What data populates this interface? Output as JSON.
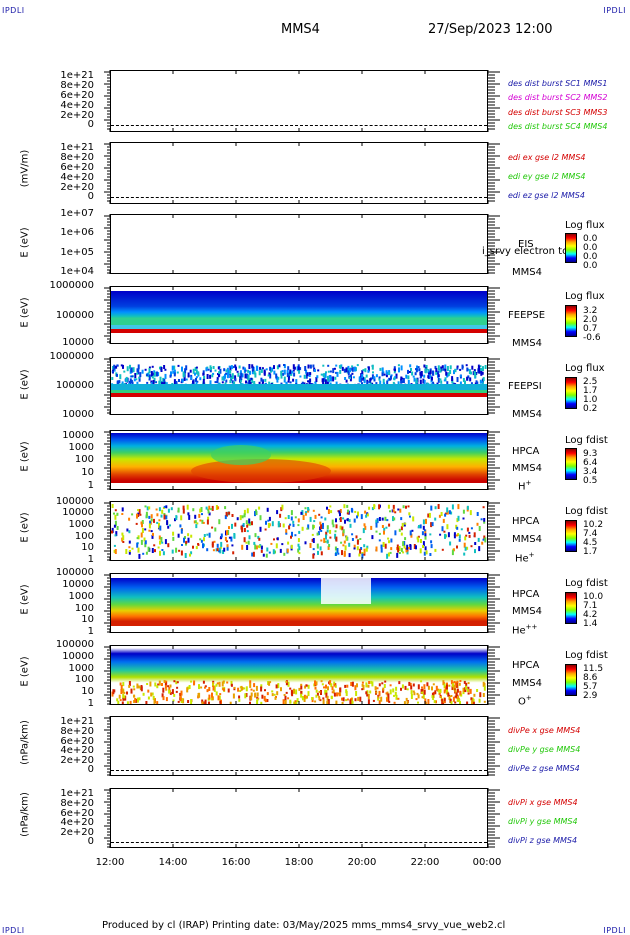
{
  "header": {
    "corner_left": "IPDLI",
    "corner_right": "IPDLI",
    "spacecraft": "MMS4",
    "datetime": "27/Sep/2023 12:00"
  },
  "footer": {
    "text": "Produced by cl (IRAP)   Printing date: 03/May/2025   mms_mms4_srvy_vue_web2.cl",
    "corner_left": "IPDLI",
    "corner_right": "IPDLI"
  },
  "colors": {
    "red": "#d40000",
    "magenta": "#d400d4",
    "green": "#22c80a",
    "blue": "#1a1aa8"
  },
  "x_axis": {
    "ticks": [
      "12:00",
      "14:00",
      "16:00",
      "18:00",
      "20:00",
      "22:00",
      "00:00"
    ]
  },
  "chart_data": [
    {
      "type": "line",
      "panel": "des dist burst",
      "ytick_labels": [
        "1e+21",
        "8e+20",
        "6e+20",
        "4e+20",
        "2e+20",
        "0"
      ],
      "legend": [
        "des dist burst SC1 MMS1",
        "des dist burst SC2 MMS2",
        "des dist burst SC3 MMS3",
        "des dist burst SC4 MMS4"
      ],
      "ylabel": ""
    },
    {
      "type": "line",
      "panel": "edi",
      "ylabel": "(mV/m)",
      "ytick_labels": [
        "1e+21",
        "8e+20",
        "6e+20",
        "4e+20",
        "2e+20",
        "0"
      ],
      "legend": [
        "edi ex gse l2 MMS4",
        "edi ey gse l2 MMS4",
        "edi ez gse l2 MMS4"
      ]
    },
    {
      "type": "heatmap",
      "panel": "EIS",
      "ylabel": "E (eV)",
      "ytick_labels": [
        "1e+07",
        "1e+06",
        "1e+05",
        "1e+04"
      ],
      "instrument": "EIS",
      "overlay_text": "i_srvy electron to",
      "spacecraft": "MMS4",
      "colorbar_title": "Log flux",
      "colorbar_values": [
        "0.0",
        "0.0",
        "0.0",
        "0.0"
      ]
    },
    {
      "type": "heatmap",
      "panel": "FEEPSE",
      "ylabel": "E (eV)",
      "ytick_labels": [
        "1000000",
        "100000",
        "10000"
      ],
      "instrument": "FEEPSE",
      "spacecraft": "MMS4",
      "colorbar_title": "Log flux",
      "colorbar_values": [
        "3.2",
        "2.0",
        "0.7",
        "-0.6"
      ]
    },
    {
      "type": "heatmap",
      "panel": "FEEPSI",
      "ylabel": "E (eV)",
      "ytick_labels": [
        "1000000",
        "100000",
        "10000"
      ],
      "instrument": "FEEPSI",
      "spacecraft": "MMS4",
      "colorbar_title": "Log flux",
      "colorbar_values": [
        "2.5",
        "1.7",
        "1.0",
        "0.2"
      ]
    },
    {
      "type": "heatmap",
      "panel": "HPCA H+",
      "ylabel": "E (eV)",
      "ytick_labels": [
        "10000",
        "1000",
        "100",
        "10",
        "1"
      ],
      "instrument": "HPCA",
      "spacecraft": "MMS4",
      "species": "H+",
      "colorbar_title": "Log fdist",
      "colorbar_values": [
        "9.3",
        "6.4",
        "3.4",
        "0.5"
      ]
    },
    {
      "type": "heatmap",
      "panel": "HPCA He+",
      "ylabel": "E (eV)",
      "ytick_labels": [
        "100000",
        "10000",
        "1000",
        "100",
        "10",
        "1"
      ],
      "instrument": "HPCA",
      "spacecraft": "MMS4",
      "species": "He+",
      "colorbar_title": "Log fdist",
      "colorbar_values": [
        "10.2",
        "7.4",
        "4.5",
        "1.7"
      ]
    },
    {
      "type": "heatmap",
      "panel": "HPCA He++",
      "ylabel": "E (eV)",
      "ytick_labels": [
        "100000",
        "10000",
        "1000",
        "100",
        "10",
        "1"
      ],
      "instrument": "HPCA",
      "spacecraft": "MMS4",
      "species": "He++",
      "colorbar_title": "Log fdist",
      "colorbar_values": [
        "10.0",
        "7.1",
        "4.2",
        "1.4"
      ]
    },
    {
      "type": "heatmap",
      "panel": "HPCA O+",
      "ylabel": "E (eV)",
      "ytick_labels": [
        "100000",
        "10000",
        "1000",
        "100",
        "10",
        "1"
      ],
      "instrument": "HPCA",
      "spacecraft": "MMS4",
      "species": "O+",
      "colorbar_title": "Log fdist",
      "colorbar_values": [
        "11.5",
        "8.6",
        "5.7",
        "2.9"
      ]
    },
    {
      "type": "line",
      "panel": "divPe",
      "ylabel": "(nPa/km)",
      "ytick_labels": [
        "1e+21",
        "8e+20",
        "6e+20",
        "4e+20",
        "2e+20",
        "0"
      ],
      "legend": [
        "divPe x gse MMS4",
        "divPe y gse MMS4",
        "divPe z gse MMS4"
      ]
    },
    {
      "type": "line",
      "panel": "divPi",
      "ylabel": "(nPa/km)",
      "ytick_labels": [
        "1e+21",
        "8e+20",
        "6e+20",
        "4e+20",
        "2e+20",
        "0"
      ],
      "legend": [
        "divPi x gse MMS4",
        "divPi y gse MMS4",
        "divPi z gse MMS4"
      ]
    }
  ]
}
